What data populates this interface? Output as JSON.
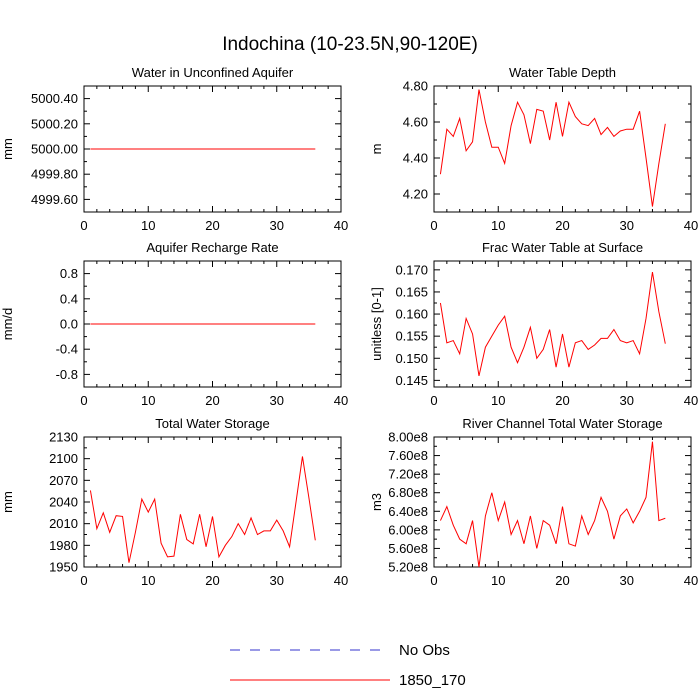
{
  "figure": {
    "title": "Indochina (10-23.5N,90-120E)",
    "legend": [
      {
        "label": "No Obs",
        "color": "#3333cc",
        "dashed": true
      },
      {
        "label": "1850_170",
        "color": "#ff0000",
        "dashed": false
      }
    ]
  },
  "chart_data": [
    {
      "type": "line",
      "title": "Water in Unconfined Aquifer",
      "xlabel": "",
      "ylabel": "mm",
      "xlim": [
        0,
        40
      ],
      "ylim": [
        4999.5,
        5000.5
      ],
      "xticks": [
        0,
        10,
        20,
        30,
        40
      ],
      "yticks": [
        4999.6,
        4999.8,
        5000.0,
        5000.2,
        5000.4
      ],
      "yticklabels": [
        "4999.60",
        "4999.80",
        "5000.00",
        "5000.20",
        "5000.40"
      ],
      "series": [
        {
          "name": "1850_170",
          "color": "#ff0000",
          "x": [
            1,
            2,
            3,
            4,
            5,
            6,
            7,
            8,
            9,
            10,
            11,
            12,
            13,
            14,
            15,
            16,
            17,
            18,
            19,
            20,
            21,
            22,
            23,
            24,
            25,
            26,
            27,
            28,
            29,
            30,
            31,
            32,
            33,
            34,
            35,
            36
          ],
          "y": [
            5000,
            5000,
            5000,
            5000,
            5000,
            5000,
            5000,
            5000,
            5000,
            5000,
            5000,
            5000,
            5000,
            5000,
            5000,
            5000,
            5000,
            5000,
            5000,
            5000,
            5000,
            5000,
            5000,
            5000,
            5000,
            5000,
            5000,
            5000,
            5000,
            5000,
            5000,
            5000,
            5000,
            5000,
            5000,
            5000
          ]
        }
      ]
    },
    {
      "type": "line",
      "title": "Water Table Depth",
      "xlabel": "",
      "ylabel": "m",
      "xlim": [
        0,
        40
      ],
      "ylim": [
        4.1,
        4.8
      ],
      "xticks": [
        0,
        10,
        20,
        30,
        40
      ],
      "yticks": [
        4.2,
        4.4,
        4.6,
        4.8
      ],
      "yticklabels": [
        "4.20",
        "4.40",
        "4.60",
        "4.80"
      ],
      "series": [
        {
          "name": "1850_170",
          "color": "#ff0000",
          "x": [
            1,
            2,
            3,
            4,
            5,
            6,
            7,
            8,
            9,
            10,
            11,
            12,
            13,
            14,
            15,
            16,
            17,
            18,
            19,
            20,
            21,
            22,
            23,
            24,
            25,
            26,
            27,
            28,
            29,
            30,
            31,
            32,
            33,
            34,
            35,
            36
          ],
          "y": [
            4.31,
            4.56,
            4.52,
            4.62,
            4.44,
            4.49,
            4.78,
            4.6,
            4.46,
            4.46,
            4.37,
            4.58,
            4.71,
            4.64,
            4.48,
            4.67,
            4.66,
            4.5,
            4.71,
            4.52,
            4.71,
            4.63,
            4.59,
            4.58,
            4.62,
            4.53,
            4.57,
            4.52,
            4.55,
            4.56,
            4.56,
            4.66,
            4.4,
            4.13,
            4.37,
            4.59
          ]
        }
      ]
    },
    {
      "type": "line",
      "title": "Aquifer Recharge Rate",
      "xlabel": "",
      "ylabel": "mm/d",
      "xlim": [
        0,
        40
      ],
      "ylim": [
        -1.0,
        1.0
      ],
      "xticks": [
        0,
        10,
        20,
        30,
        40
      ],
      "yticks": [
        -0.8,
        -0.4,
        0.0,
        0.4,
        0.8
      ],
      "yticklabels": [
        "-0.8",
        "-0.4",
        "0.0",
        "0.4",
        "0.8"
      ],
      "series": [
        {
          "name": "1850_170",
          "color": "#ff0000",
          "x": [
            1,
            2,
            3,
            4,
            5,
            6,
            7,
            8,
            9,
            10,
            11,
            12,
            13,
            14,
            15,
            16,
            17,
            18,
            19,
            20,
            21,
            22,
            23,
            24,
            25,
            26,
            27,
            28,
            29,
            30,
            31,
            32,
            33,
            34,
            35,
            36
          ],
          "y": [
            0,
            0,
            0,
            0,
            0,
            0,
            0,
            0,
            0,
            0,
            0,
            0,
            0,
            0,
            0,
            0,
            0,
            0,
            0,
            0,
            0,
            0,
            0,
            0,
            0,
            0,
            0,
            0,
            0,
            0,
            0,
            0,
            0,
            0,
            0,
            0
          ]
        }
      ]
    },
    {
      "type": "line",
      "title": "Frac Water Table at Surface",
      "xlabel": "",
      "ylabel": "unitless [0-1]",
      "xlim": [
        0,
        40
      ],
      "ylim": [
        0.1435,
        0.172
      ],
      "xticks": [
        0,
        10,
        20,
        30,
        40
      ],
      "yticks": [
        0.145,
        0.15,
        0.155,
        0.16,
        0.165,
        0.17
      ],
      "yticklabels": [
        "0.145",
        "0.150",
        "0.155",
        "0.160",
        "0.165",
        "0.170"
      ],
      "series": [
        {
          "name": "1850_170",
          "color": "#ff0000",
          "x": [
            1,
            2,
            3,
            4,
            5,
            6,
            7,
            8,
            9,
            10,
            11,
            12,
            13,
            14,
            15,
            16,
            17,
            18,
            19,
            20,
            21,
            22,
            23,
            24,
            25,
            26,
            27,
            28,
            29,
            30,
            31,
            32,
            33,
            34,
            35,
            36
          ],
          "y": [
            0.1625,
            0.1535,
            0.154,
            0.151,
            0.159,
            0.1555,
            0.146,
            0.1525,
            0.155,
            0.1575,
            0.1595,
            0.1525,
            0.149,
            0.1525,
            0.157,
            0.15,
            0.152,
            0.1565,
            0.148,
            0.1555,
            0.148,
            0.1535,
            0.154,
            0.152,
            0.153,
            0.1545,
            0.1545,
            0.1565,
            0.154,
            0.1535,
            0.154,
            0.151,
            0.159,
            0.1695,
            0.1605,
            0.1533
          ]
        }
      ]
    },
    {
      "type": "line",
      "title": "Total Water Storage",
      "xlabel": "",
      "ylabel": "mm",
      "xlim": [
        0,
        40
      ],
      "ylim": [
        1950,
        2130
      ],
      "xticks": [
        0,
        10,
        20,
        30,
        40
      ],
      "yticks": [
        1950,
        1980,
        2010,
        2040,
        2070,
        2100,
        2130
      ],
      "yticklabels": [
        "1950",
        "1980",
        "2010",
        "2040",
        "2070",
        "2100",
        "2130"
      ],
      "series": [
        {
          "name": "1850_170",
          "color": "#ff0000",
          "x": [
            1,
            2,
            3,
            4,
            5,
            6,
            7,
            8,
            9,
            10,
            11,
            12,
            13,
            14,
            15,
            16,
            17,
            18,
            19,
            20,
            21,
            22,
            23,
            24,
            25,
            26,
            27,
            28,
            29,
            30,
            31,
            32,
            33,
            34,
            35,
            36
          ],
          "y": [
            2056,
            2003,
            2025,
            1998,
            2021,
            2020,
            1956,
            1998,
            2044,
            2026,
            2044,
            1983,
            1964,
            1965,
            2023,
            1988,
            1982,
            2023,
            1978,
            2020,
            1964,
            1980,
            1992,
            2010,
            1995,
            2018,
            1995,
            2000,
            2000,
            2015,
            2000,
            1978,
            2040,
            2103,
            2046,
            1987
          ]
        }
      ]
    },
    {
      "type": "line",
      "title": "River Channel Total Water Storage",
      "xlabel": "",
      "ylabel": "m3",
      "xlim": [
        0,
        40
      ],
      "ylim": [
        520000000,
        800000000
      ],
      "xticks": [
        0,
        10,
        20,
        30,
        40
      ],
      "yticks": [
        520000000,
        560000000,
        600000000,
        640000000,
        680000000,
        720000000,
        760000000,
        800000000
      ],
      "yticklabels": [
        "5.20e8",
        "5.60e8",
        "6.00e8",
        "6.40e8",
        "6.80e8",
        "7.20e8",
        "7.60e8",
        "8.00e8"
      ],
      "series": [
        {
          "name": "1850_170",
          "color": "#ff0000",
          "x": [
            1,
            2,
            3,
            4,
            5,
            6,
            7,
            8,
            9,
            10,
            11,
            12,
            13,
            14,
            15,
            16,
            17,
            18,
            19,
            20,
            21,
            22,
            23,
            24,
            25,
            26,
            27,
            28,
            29,
            30,
            31,
            32,
            33,
            34,
            35,
            36
          ],
          "y": [
            620000000,
            650000000,
            610000000,
            580000000,
            570000000,
            620000000,
            520000000,
            630000000,
            680000000,
            620000000,
            660000000,
            590000000,
            620000000,
            570000000,
            630000000,
            560000000,
            620000000,
            610000000,
            570000000,
            650000000,
            570000000,
            565000000,
            630000000,
            590000000,
            620000000,
            670000000,
            640000000,
            580000000,
            630000000,
            645000000,
            615000000,
            640000000,
            670000000,
            790000000,
            620000000,
            625000000
          ]
        }
      ]
    }
  ]
}
